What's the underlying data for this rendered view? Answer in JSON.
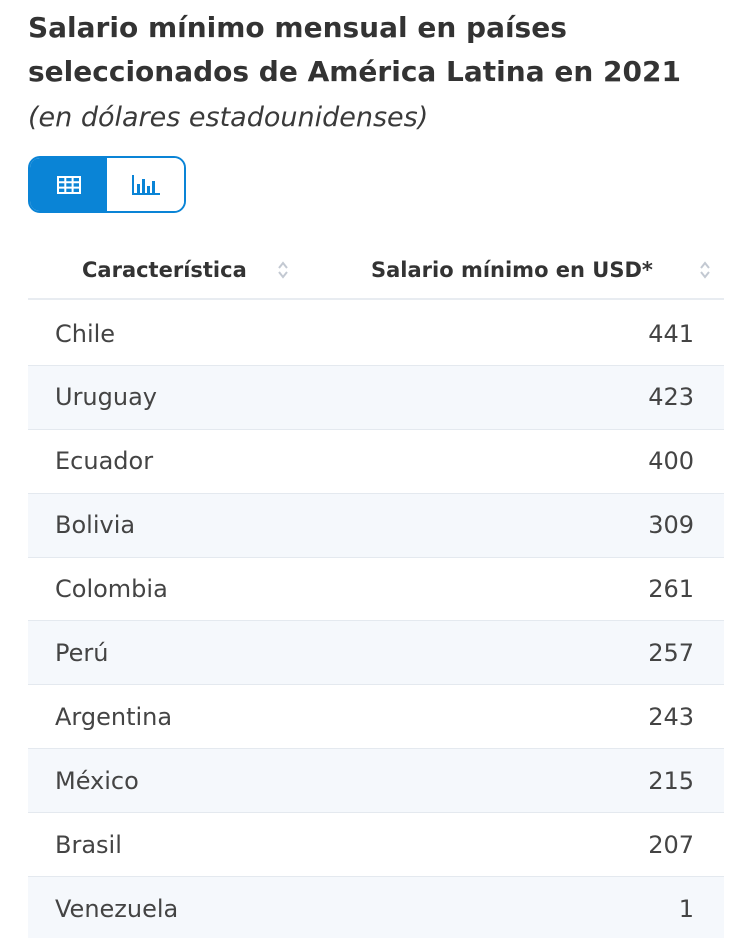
{
  "title": "Salario mínimo mensual en países seleccionados de América Latina en 2021",
  "subtitle": "(en dólares estadounidenses)",
  "view_toggle": {
    "table_icon": "table-icon",
    "chart_icon": "bar-chart-icon",
    "active": "table"
  },
  "colors": {
    "accent": "#0a84d6",
    "row_alt": "#f5f8fc",
    "border": "#e4e9ef"
  },
  "chart_data": {
    "type": "table",
    "columns": [
      "Característica",
      "Salario mínimo en USD*"
    ],
    "categories": [
      "Chile",
      "Uruguay",
      "Ecuador",
      "Bolivia",
      "Colombia",
      "Perú",
      "Argentina",
      "México",
      "Brasil",
      "Venezuela"
    ],
    "values": [
      441,
      423,
      400,
      309,
      261,
      257,
      243,
      215,
      207,
      1
    ]
  }
}
